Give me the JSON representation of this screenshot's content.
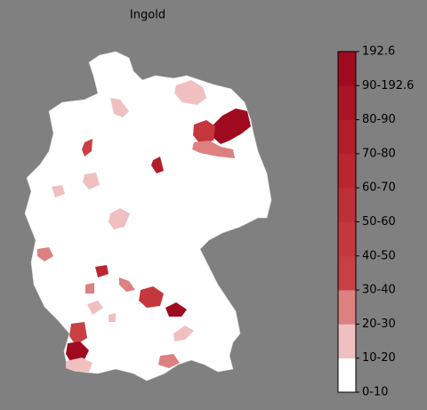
{
  "title": "Ingold",
  "colorbar": {
    "labels": [
      "0-10",
      "10-20",
      "20-30",
      "30-40",
      "40-50",
      "50-60",
      "60-70",
      "70-80",
      "80-90",
      "90-192.6",
      "192.6"
    ],
    "colors": [
      "#ffffff",
      "#f0c0c0",
      "#dc8080",
      "#c93f43",
      "#c4373c",
      "#bf2f36",
      "#b92630",
      "#b21d2a",
      "#aa1424",
      "#a00a1e"
    ]
  }
}
